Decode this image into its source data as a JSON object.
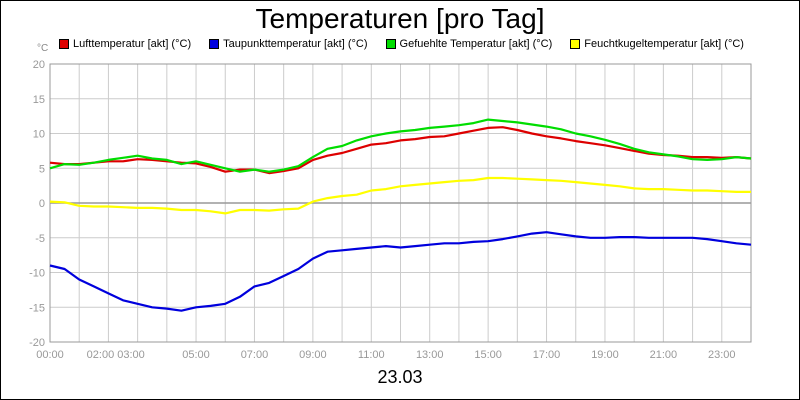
{
  "chart_data": {
    "type": "line",
    "title": "Temperaturen [pro Tag]",
    "ylabel_unit": "°C",
    "xlabel": "23.03",
    "ylim": [
      -20,
      20
    ],
    "yticks": [
      20,
      15,
      10,
      5,
      0,
      -5,
      -10,
      -15,
      -20
    ],
    "xlim": [
      0,
      24
    ],
    "xticks": [
      {
        "t": 0,
        "label": "00:00"
      },
      {
        "t": 2.25,
        "label": "02:00 03:00"
      },
      {
        "t": 5,
        "label": "05:00"
      },
      {
        "t": 7,
        "label": "07:00"
      },
      {
        "t": 9,
        "label": "09:00"
      },
      {
        "t": 11,
        "label": "11:00"
      },
      {
        "t": 13,
        "label": "13:00"
      },
      {
        "t": 15,
        "label": "15:00"
      },
      {
        "t": 17,
        "label": "17:00"
      },
      {
        "t": 19,
        "label": "19:00"
      },
      {
        "t": 21,
        "label": "21:00"
      },
      {
        "t": 23,
        "label": "23:00"
      }
    ],
    "grid": true,
    "legend_position": "top",
    "x": [
      0,
      0.5,
      1,
      1.5,
      2,
      2.5,
      3,
      3.5,
      4,
      4.5,
      5,
      5.5,
      6,
      6.5,
      7,
      7.5,
      8,
      8.5,
      9,
      9.5,
      10,
      10.5,
      11,
      11.5,
      12,
      12.5,
      13,
      13.5,
      14,
      14.5,
      15,
      15.5,
      16,
      16.5,
      17,
      17.5,
      18,
      18.5,
      19,
      19.5,
      20,
      20.5,
      21,
      21.5,
      22,
      22.5,
      23,
      23.5,
      24
    ],
    "series": [
      {
        "name": "Lufttemperatur [akt] (°C)",
        "color": "#dd0000",
        "values": [
          5.8,
          5.6,
          5.6,
          5.8,
          6.0,
          6.0,
          6.3,
          6.2,
          6.0,
          5.8,
          5.7,
          5.2,
          4.5,
          4.8,
          4.8,
          4.3,
          4.6,
          5.0,
          6.2,
          6.8,
          7.2,
          7.8,
          8.4,
          8.6,
          9.0,
          9.2,
          9.5,
          9.6,
          10.0,
          10.4,
          10.8,
          10.9,
          10.5,
          10.0,
          9.6,
          9.3,
          8.9,
          8.6,
          8.3,
          7.9,
          7.5,
          7.1,
          6.9,
          6.8,
          6.6,
          6.6,
          6.5,
          6.6,
          6.4
        ]
      },
      {
        "name": "Taupunkttemperatur [akt] (°C)",
        "color": "#0000dd",
        "values": [
          -9.0,
          -9.5,
          -11.0,
          -12.0,
          -13.0,
          -14.0,
          -14.5,
          -15.0,
          -15.2,
          -15.5,
          -15.0,
          -14.8,
          -14.5,
          -13.5,
          -12.0,
          -11.5,
          -10.5,
          -9.5,
          -8.0,
          -7.0,
          -6.8,
          -6.6,
          -6.4,
          -6.2,
          -6.4,
          -6.2,
          -6.0,
          -5.8,
          -5.8,
          -5.6,
          -5.5,
          -5.2,
          -4.8,
          -4.4,
          -4.2,
          -4.5,
          -4.8,
          -5.0,
          -5.0,
          -4.9,
          -4.9,
          -5.0,
          -5.0,
          -5.0,
          -5.0,
          -5.2,
          -5.5,
          -5.8,
          -6.0
        ]
      },
      {
        "name": "Gefuehlte Temperatur [akt] (°C)",
        "color": "#00dd00",
        "values": [
          5.0,
          5.6,
          5.5,
          5.8,
          6.2,
          6.5,
          6.8,
          6.4,
          6.2,
          5.6,
          6.0,
          5.5,
          5.0,
          4.5,
          4.8,
          4.5,
          4.8,
          5.3,
          6.6,
          7.8,
          8.2,
          9.0,
          9.6,
          10.0,
          10.3,
          10.5,
          10.8,
          11.0,
          11.2,
          11.5,
          12.0,
          11.8,
          11.6,
          11.3,
          11.0,
          10.6,
          10.0,
          9.6,
          9.1,
          8.5,
          7.8,
          7.3,
          7.0,
          6.7,
          6.3,
          6.2,
          6.3,
          6.6,
          6.4
        ]
      },
      {
        "name": "Feuchtkugeltemperatur [akt] (°C)",
        "color": "#ffff00",
        "values": [
          0.2,
          0.1,
          -0.4,
          -0.5,
          -0.5,
          -0.6,
          -0.7,
          -0.7,
          -0.8,
          -1.0,
          -1.0,
          -1.2,
          -1.5,
          -1.0,
          -1.0,
          -1.1,
          -0.9,
          -0.8,
          0.2,
          0.7,
          1.0,
          1.2,
          1.8,
          2.0,
          2.4,
          2.6,
          2.8,
          3.0,
          3.2,
          3.3,
          3.6,
          3.6,
          3.5,
          3.4,
          3.3,
          3.2,
          3.0,
          2.8,
          2.6,
          2.4,
          2.1,
          2.0,
          2.0,
          1.9,
          1.8,
          1.8,
          1.7,
          1.6,
          1.6
        ]
      }
    ]
  }
}
